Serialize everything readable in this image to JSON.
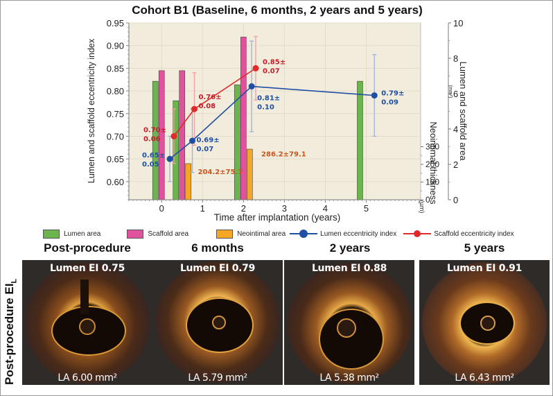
{
  "chart_data": {
    "type": "bar+line",
    "title": "Cohort B1 (Baseline, 6 months, 2 years and 5 years)",
    "xlabel": "Time after implantation (years)",
    "ylabel_left": "Lumen and scaffold eccentricity index",
    "ylabel_right_area": "Lumen and scaffold area",
    "ylabel_right_area_unit": "(mm²)",
    "ylabel_right_neointimal": "Neointimal thickness",
    "ylabel_right_neointimal_unit": "(µm)",
    "xlim": [
      -0.8,
      6.33
    ],
    "x_ticks": [
      "0",
      "1",
      "2",
      "3",
      "4",
      "5"
    ],
    "ylim_left": [
      0.56,
      0.95
    ],
    "y_ticks_left": [
      "0.95",
      "0.90",
      "0.85",
      "0.80",
      "0.75",
      "0.70",
      "0.65",
      "0.60"
    ],
    "ylim_area": [
      0,
      10
    ],
    "y_ticks_area": [
      "0",
      "2",
      "4",
      "6",
      "8",
      "10"
    ],
    "ylim_neointimal": [
      0,
      1000
    ],
    "y_ticks_neointimal": [
      "0",
      "100",
      "200",
      "300"
    ],
    "grid": true,
    "legend_position": "bottom",
    "bar_series": [
      {
        "name": "Lumen area",
        "color": "#6cb44e",
        "axis": "area",
        "points": [
          {
            "x": 0,
            "value": 6.7
          },
          {
            "x": 0.5,
            "value": 5.6
          },
          {
            "x": 2,
            "value": 6.5
          },
          {
            "x": 5,
            "value": 6.7
          }
        ]
      },
      {
        "name": "Scaffold area",
        "color": "#e0529b",
        "axis": "area",
        "points": [
          {
            "x": 0,
            "value": 7.3
          },
          {
            "x": 0.5,
            "value": 7.3
          },
          {
            "x": 2,
            "value": 9.2
          }
        ]
      },
      {
        "name": "Neointimal area",
        "color": "#f5a623",
        "axis": "neointimal",
        "points": [
          {
            "x": 0.5,
            "value": 204.2
          },
          {
            "x": 2,
            "value": 286.2
          }
        ]
      }
    ],
    "line_series": [
      {
        "name": "Lumen eccentricity index",
        "color": "#1f4fa3",
        "error_color": "#9fb2da",
        "points": [
          {
            "x": 0.2,
            "y": 0.65,
            "err": 0.05,
            "label_top": "0.65±",
            "label_bottom": "0.05"
          },
          {
            "x": 0.75,
            "y": 0.69,
            "err": 0.07,
            "label_top": "0.69±",
            "label_bottom": "0.07"
          },
          {
            "x": 2.2,
            "y": 0.81,
            "err": 0.1,
            "label_top": "0.81±",
            "label_bottom": "0.10"
          },
          {
            "x": 5.2,
            "y": 0.79,
            "err": 0.09,
            "label_top": "0.79±",
            "label_bottom": "0.09"
          }
        ]
      },
      {
        "name": "Scaffold eccentricity index",
        "color": "#e02a2a",
        "error_color": "#f0a0a0",
        "points": [
          {
            "x": 0.3,
            "y": 0.7,
            "err": 0.06,
            "label_top": "0.70±",
            "label_bottom": "0.06"
          },
          {
            "x": 0.8,
            "y": 0.76,
            "err": 0.08,
            "label_top": "0.76±",
            "label_bottom": "0.08"
          },
          {
            "x": 2.3,
            "y": 0.85,
            "err": 0.07,
            "label_top": "0.85±",
            "label_bottom": "0.07"
          }
        ]
      }
    ],
    "annotations": [
      {
        "text": "204.2±75.7",
        "x": 0.75,
        "value": 160,
        "axis": "neointimal",
        "color": "#c8561e"
      },
      {
        "text": "286.2±79.1",
        "x": 2.3,
        "value": 260,
        "axis": "neointimal",
        "color": "#c8561e"
      }
    ]
  },
  "legend": [
    {
      "label": "Lumen area",
      "kind": "box",
      "color": "#6cb44e"
    },
    {
      "label": "Scaffold area",
      "kind": "box",
      "color": "#e0529b"
    },
    {
      "label": "Neointimal area",
      "kind": "box",
      "color": "#f5a623"
    },
    {
      "label": "Lumen eccentricity index",
      "kind": "line",
      "color": "#1f4fa3"
    },
    {
      "label": "Scaffold eccentricity index",
      "kind": "line",
      "color": "#e02a2a"
    }
  ],
  "panels": {
    "row_label": "Post-procedure EI",
    "row_label_sub": "L",
    "items": [
      {
        "title": "Post-procedure",
        "ei": "Lumen EI 0.75",
        "la": "LA 6.00 mm²"
      },
      {
        "title": "6 months",
        "ei": "Lumen EI 0.79",
        "la": "LA 5.79 mm²"
      },
      {
        "title": "2 years",
        "ei": "Lumen EI 0.88",
        "la": "LA 5.38 mm²"
      },
      {
        "title": "5 years",
        "ei": "Lumen EI 0.91",
        "la": "LA 6.43  mm²"
      }
    ]
  }
}
